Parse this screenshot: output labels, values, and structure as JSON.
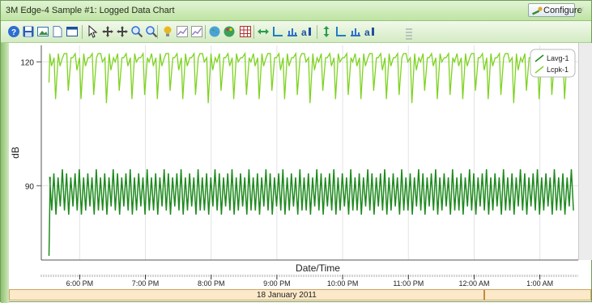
{
  "window": {
    "title": "3M Edge-4 Sample #1: Logged Data Chart",
    "configure_label": "Configure",
    "close_glyph": "×"
  },
  "toolbar": {
    "icons": [
      "help-icon",
      "save-icon",
      "image-icon",
      "page-icon",
      "window-icon",
      "pointer-icon",
      "pan-icon",
      "move-icon",
      "zoom-in-icon",
      "zoom-out-icon",
      "bulb-icon",
      "chart-line-icon",
      "chart-line-2-icon",
      "globe-icon",
      "palette-icon",
      "grid-icon",
      "horizontal-arrows-icon",
      "axis-x-icon",
      "axis-x-scale-icon",
      "axis-x-label-icon",
      "vertical-arrows-icon",
      "axis-y-icon",
      "axis-y-scale-icon",
      "axis-y-label-icon"
    ]
  },
  "colors": {
    "lavg": "#1f8a1f",
    "lcpk": "#7ed321",
    "grid": "#e3e3e3"
  },
  "date_bar": {
    "label": "18 January 2011"
  },
  "chart_data": {
    "type": "line",
    "xlabel": "Date/Time",
    "ylabel": "dB",
    "x_type": "time",
    "x_range": [
      "17:25",
      "01:35"
    ],
    "x_ticks": [
      "6:00 PM",
      "7:00 PM",
      "8:00 PM",
      "9:00 PM",
      "10:00 PM",
      "11:00 PM",
      "12:00 AM",
      "1:00 AM"
    ],
    "y_ticks": [
      90,
      120
    ],
    "ylim": [
      72,
      124
    ],
    "legend_position": "top-right",
    "series": [
      {
        "name": "Lavg-1",
        "start_value": 73,
        "cycles": 124,
        "peak_values": [
          92,
          93,
          92,
          94,
          93,
          92,
          93,
          94,
          92,
          93,
          92,
          94
        ],
        "trough_values": [
          84,
          83,
          85,
          84,
          83,
          85,
          84,
          83,
          84,
          85,
          83,
          84
        ]
      },
      {
        "name": "Lcpk-1",
        "start_value": 115,
        "cycles": 124,
        "peak_values": [
          122,
          121,
          122,
          121,
          122,
          121
        ],
        "base_values": [
          119,
          121,
          119,
          122,
          120,
          121,
          118,
          120
        ],
        "dips": [
          111,
          113,
          111,
          112,
          110,
          113,
          111,
          112
        ],
        "dip_every": 3
      }
    ]
  }
}
